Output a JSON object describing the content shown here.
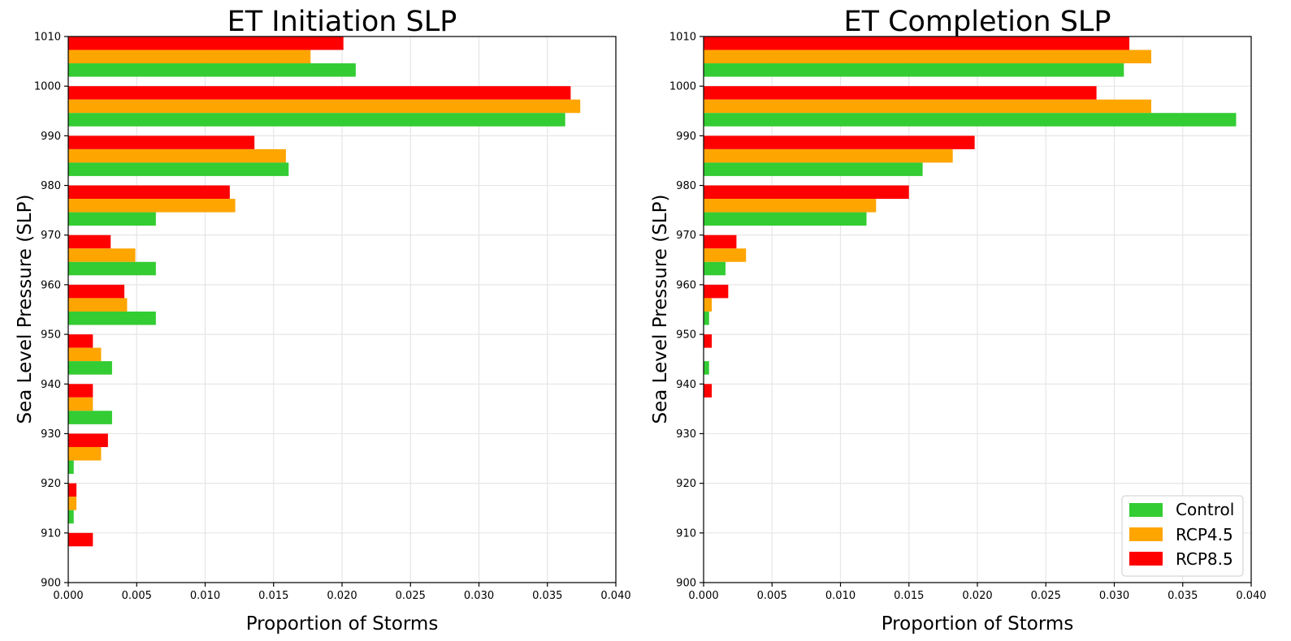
{
  "colors": {
    "Control": "#33cc33",
    "RCP4.5": "#ffa500",
    "RCP8.5": "#ff0000"
  },
  "chart_data": [
    {
      "type": "bar",
      "orientation": "horizontal",
      "title": "ET Initiation SLP",
      "xlabel": "Proportion of Storms",
      "ylabel": "Sea Level Pressure (SLP)",
      "xlim": [
        0,
        0.04
      ],
      "ylim": [
        900,
        1010
      ],
      "x_ticks": [
        "0.000",
        "0.005",
        "0.010",
        "0.015",
        "0.020",
        "0.025",
        "0.030",
        "0.035",
        "0.040"
      ],
      "y_ticks": [
        "900",
        "910",
        "920",
        "930",
        "940",
        "950",
        "960",
        "970",
        "980",
        "990",
        "1000",
        "1010"
      ],
      "grid": true,
      "bins": [
        1000,
        990,
        980,
        970,
        960,
        950,
        940,
        930,
        920,
        910,
        900
      ],
      "series": [
        {
          "name": "Control",
          "values": [
            0.021,
            0.0363,
            0.0161,
            0.0064,
            0.0064,
            0.0064,
            0.0032,
            0.0032,
            0.0004,
            0.0004,
            0.0
          ]
        },
        {
          "name": "RCP4.5",
          "values": [
            0.0177,
            0.0374,
            0.0159,
            0.0122,
            0.0049,
            0.0043,
            0.0024,
            0.0018,
            0.0024,
            0.0006,
            0.0
          ]
        },
        {
          "name": "RCP8.5",
          "values": [
            0.0201,
            0.0367,
            0.0136,
            0.0118,
            0.0031,
            0.0041,
            0.0018,
            0.0018,
            0.0029,
            0.0006,
            0.0018
          ]
        }
      ]
    },
    {
      "type": "bar",
      "orientation": "horizontal",
      "title": "ET Completion SLP",
      "xlabel": "Proportion of Storms",
      "ylabel": "Sea Level Pressure (SLP)",
      "xlim": [
        0,
        0.04
      ],
      "ylim": [
        900,
        1010
      ],
      "x_ticks": [
        "0.000",
        "0.005",
        "0.010",
        "0.015",
        "0.020",
        "0.025",
        "0.030",
        "0.035",
        "0.040"
      ],
      "y_ticks": [
        "900",
        "910",
        "920",
        "930",
        "940",
        "950",
        "960",
        "970",
        "980",
        "990",
        "1000",
        "1010"
      ],
      "grid": true,
      "legend": "lower-right",
      "bins": [
        1000,
        990,
        980,
        970,
        960,
        950,
        940,
        930,
        920,
        910,
        900
      ],
      "series": [
        {
          "name": "Control",
          "values": [
            0.0307,
            0.0389,
            0.016,
            0.0119,
            0.0016,
            0.0004,
            0.0004,
            0.0,
            0.0,
            0.0,
            0.0
          ]
        },
        {
          "name": "RCP4.5",
          "values": [
            0.0327,
            0.0327,
            0.0182,
            0.0126,
            0.0031,
            0.0006,
            0.0,
            0.0,
            0.0,
            0.0,
            0.0
          ]
        },
        {
          "name": "RCP8.5",
          "values": [
            0.0311,
            0.0287,
            0.0198,
            0.015,
            0.0024,
            0.0018,
            0.0006,
            0.0006,
            0.0,
            0.0,
            0.0
          ]
        }
      ]
    }
  ]
}
